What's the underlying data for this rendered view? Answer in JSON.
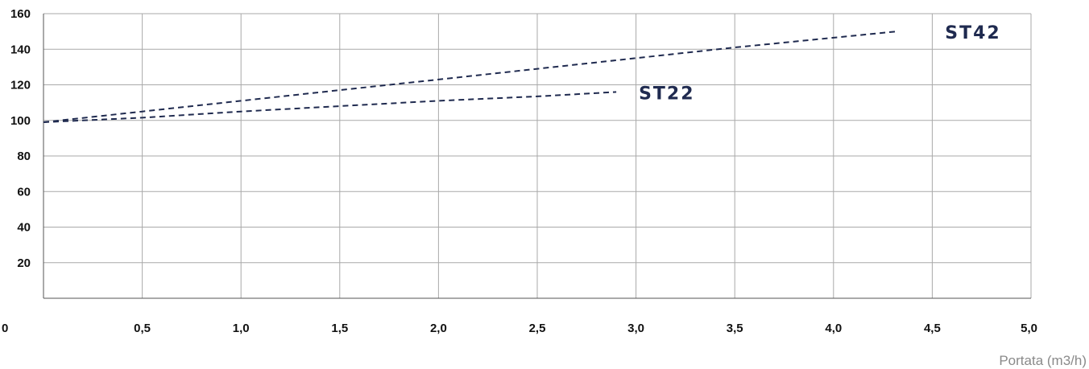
{
  "chart_data": {
    "type": "line",
    "title": "",
    "xlabel": "Portata (m3/h)",
    "ylabel": "",
    "xlim": [
      0,
      5
    ],
    "ylim": [
      0,
      160
    ],
    "x_ticks": [
      0,
      0.5,
      1.0,
      1.5,
      2.0,
      2.5,
      3.0,
      3.5,
      4.0,
      4.5,
      5.0
    ],
    "x_tick_labels": [
      "0",
      "0,5",
      "1,0",
      "1,5",
      "2,0",
      "2,5",
      "3,0",
      "3,5",
      "4,0",
      "4,5",
      "5,0"
    ],
    "y_ticks": [
      20,
      40,
      60,
      80,
      100,
      120,
      140,
      160
    ],
    "y_tick_labels": [
      "20",
      "40",
      "60",
      "80",
      "100",
      "120",
      "140",
      "160"
    ],
    "grid": true,
    "legend": "labels next to line ends",
    "line_style": "dashed",
    "line_color": "#1f2a4f",
    "series": [
      {
        "name": "ST42",
        "x": [
          0,
          0.5,
          1.0,
          1.5,
          2.0,
          2.5,
          3.0,
          3.5,
          4.0,
          4.32
        ],
        "y": [
          99,
          105,
          111,
          117,
          123,
          129,
          135,
          141,
          146.5,
          150
        ]
      },
      {
        "name": "ST22",
        "x": [
          0,
          0.5,
          1.0,
          1.5,
          2.0,
          2.5,
          2.9
        ],
        "y": [
          99,
          101.5,
          105,
          108,
          111,
          113.5,
          116
        ]
      }
    ]
  }
}
